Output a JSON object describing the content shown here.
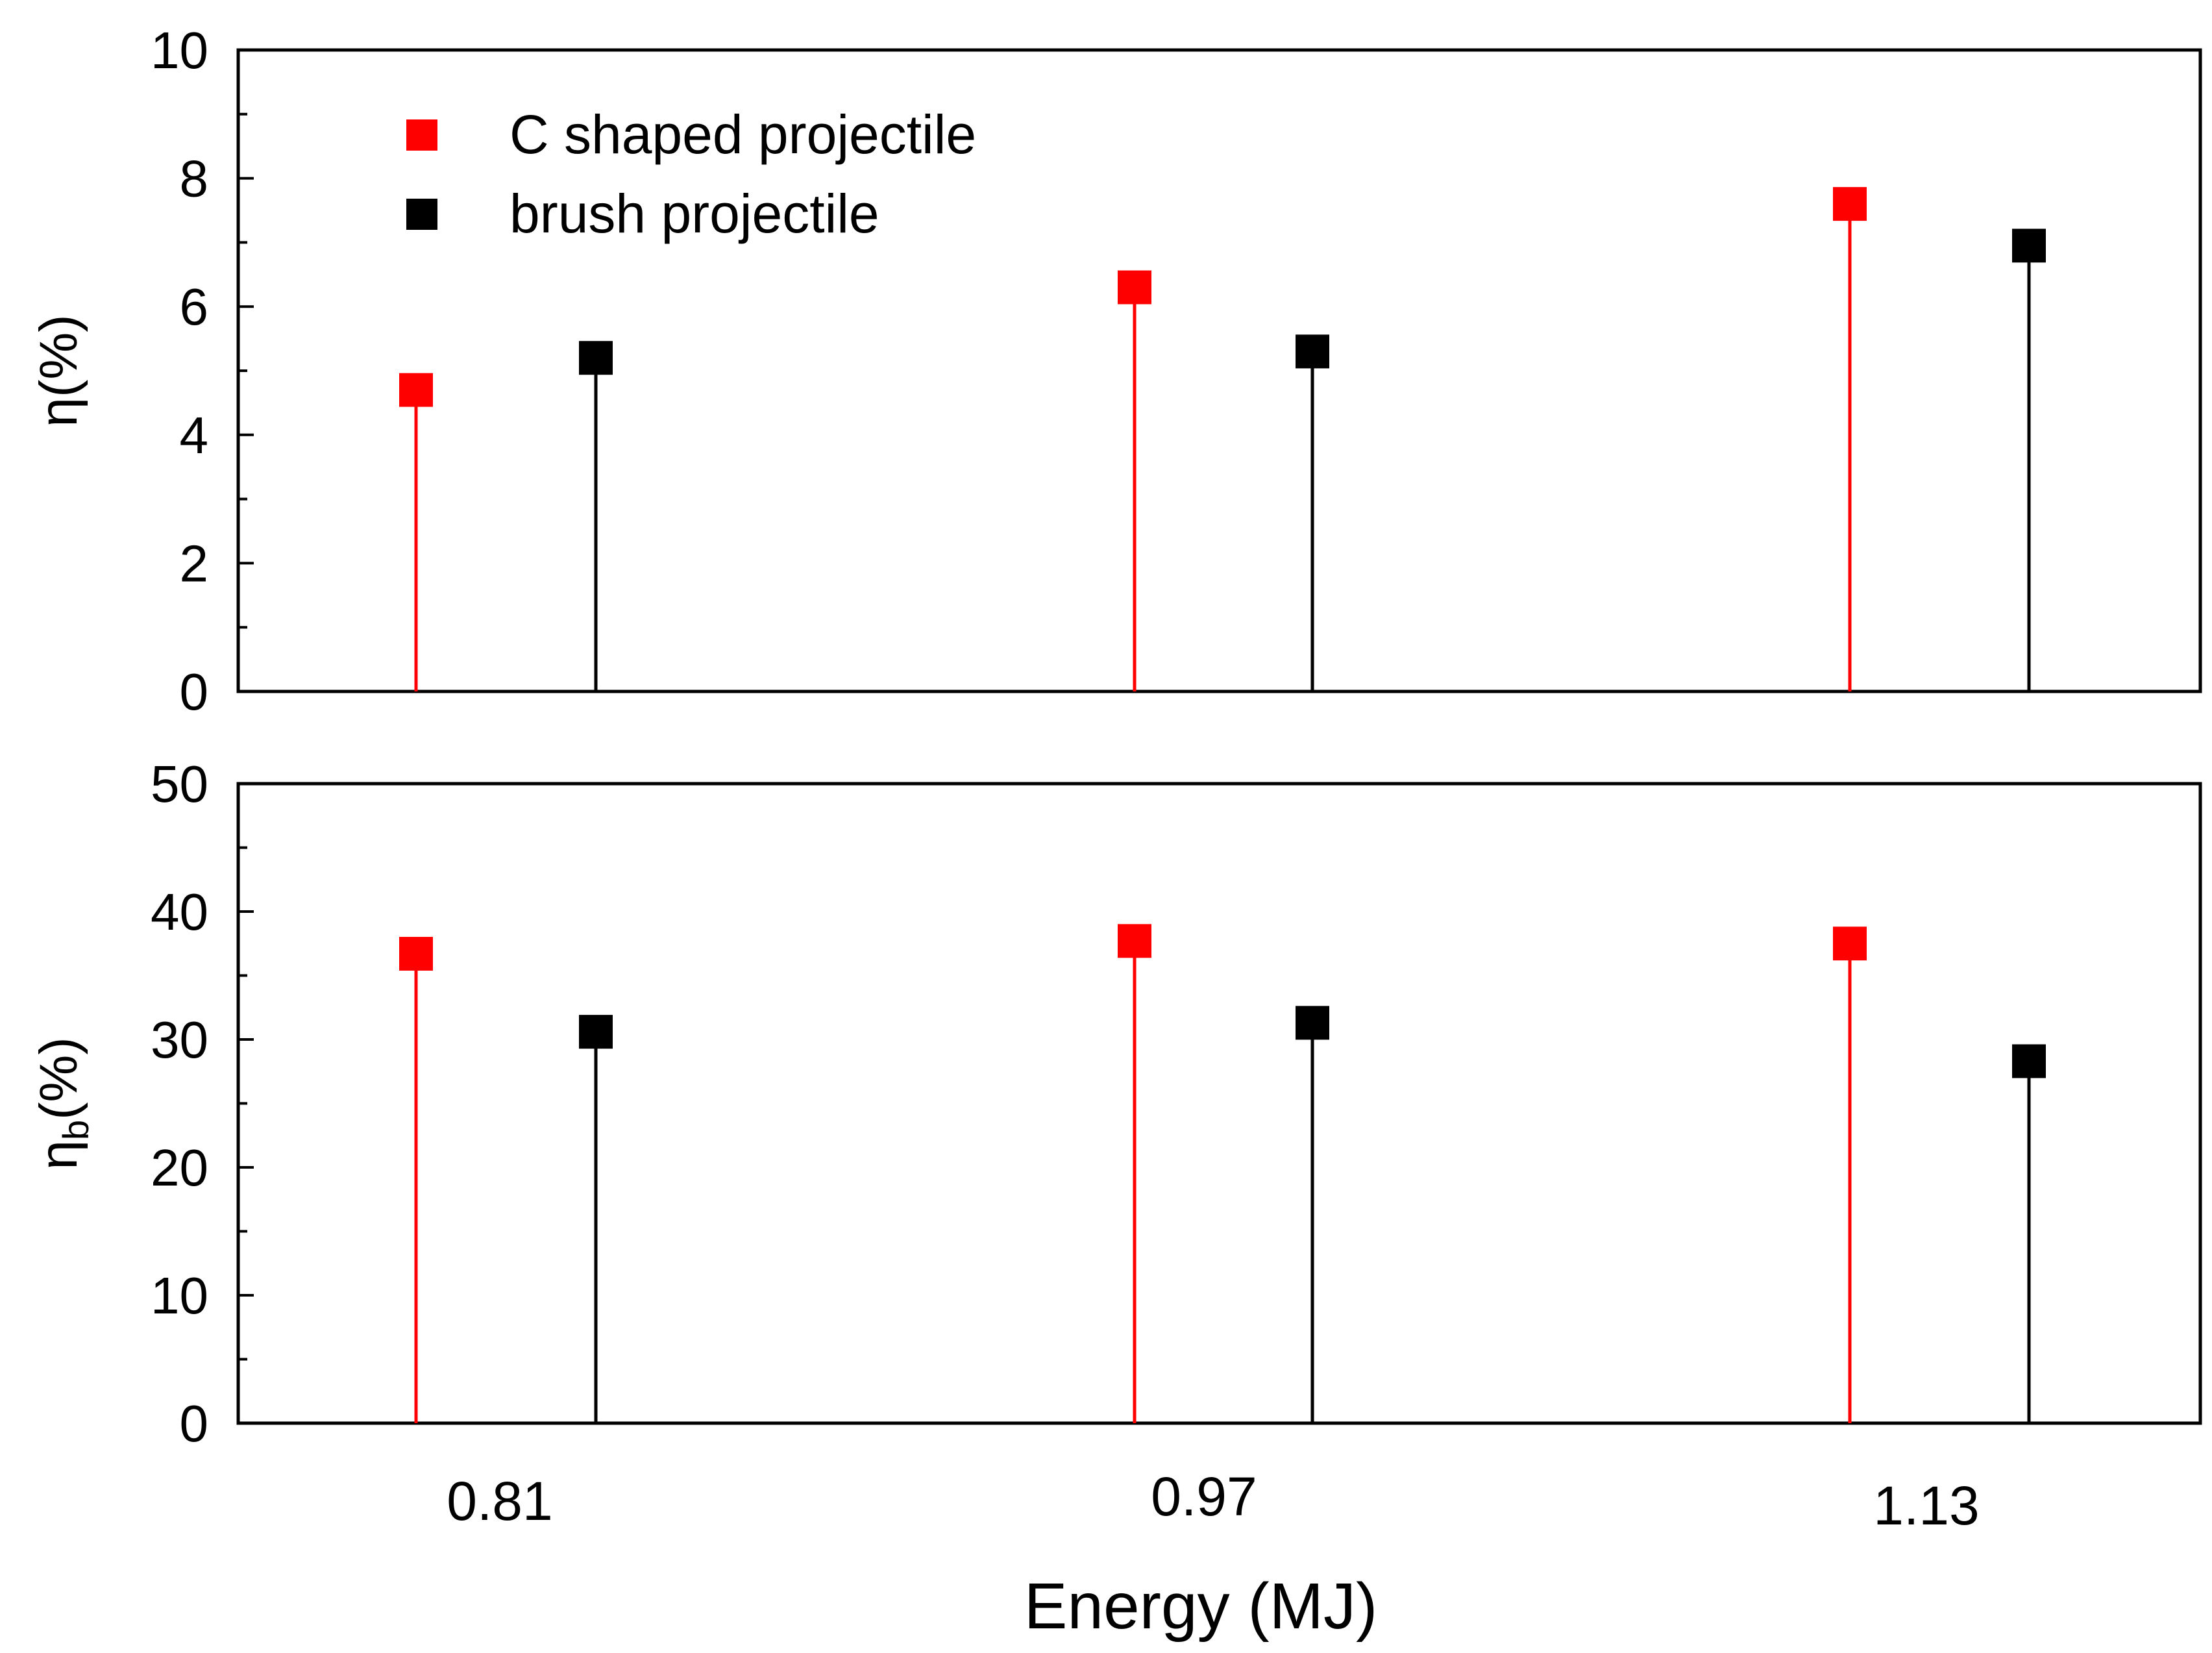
{
  "chart_data": [
    {
      "type": "scatter",
      "style": "drop-line",
      "title": "",
      "xlabel": "",
      "ylabel": "η(%)",
      "ylabel_symbol": "η",
      "ylabel_subscript": "",
      "ylabel_unit": "(%)",
      "ylim": [
        0,
        10
      ],
      "yticks": [
        0,
        2,
        4,
        6,
        8,
        10
      ],
      "categories": [
        "0.81",
        "0.97",
        "1.13"
      ],
      "legend": {
        "position": "top-left"
      },
      "series": [
        {
          "name": "C shaped projectile",
          "color": "#ff0000",
          "values": [
            4.7,
            6.3,
            7.6
          ]
        },
        {
          "name": "brush projectile",
          "color": "#000000",
          "values": [
            5.2,
            5.3,
            6.95
          ]
        }
      ]
    },
    {
      "type": "scatter",
      "style": "drop-line",
      "title": "",
      "xlabel": "Energy (MJ)",
      "ylabel": "ηb(%)",
      "ylabel_symbol": "η",
      "ylabel_subscript": "b",
      "ylabel_unit": "(%)",
      "ylim": [
        0,
        50
      ],
      "yticks": [
        0,
        10,
        20,
        30,
        40,
        50
      ],
      "categories": [
        "0.81",
        "0.97",
        "1.13"
      ],
      "series": [
        {
          "name": "C shaped projectile",
          "color": "#ff0000",
          "values": [
            36.7,
            37.7,
            37.5
          ]
        },
        {
          "name": "brush projectile",
          "color": "#000000",
          "values": [
            30.6,
            31.3,
            28.3
          ]
        }
      ]
    }
  ]
}
